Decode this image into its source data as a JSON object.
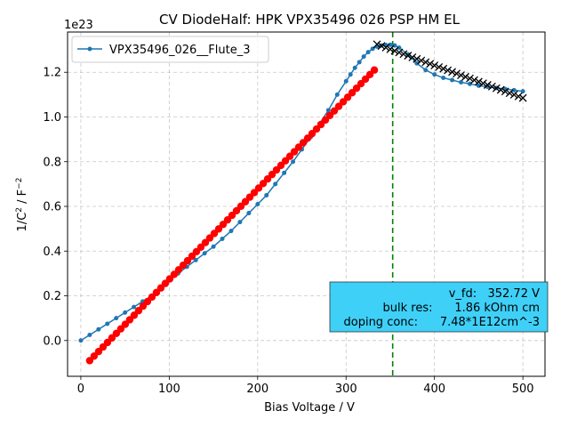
{
  "chart_data": {
    "type": "scatter",
    "title": "CV DiodeHalf: HPK VPX35496 026 PSP HM EL",
    "xlabel": "Bias Voltage / V",
    "ylabel_main": "1/C",
    "ylabel_sup1": "2",
    "ylabel_mid": " / F",
    "ylabel_sup2": "−2",
    "offset_text": "1e23",
    "xlim": [
      -15,
      525
    ],
    "ylim": [
      -0.16,
      1.38
    ],
    "x_ticks": [
      0,
      100,
      200,
      300,
      400,
      500
    ],
    "y_ticks": [
      0.0,
      0.2,
      0.4,
      0.6,
      0.8,
      1.0,
      1.2
    ],
    "y_tick_labels": [
      "0.0",
      "0.2",
      "0.4",
      "0.6",
      "0.8",
      "1.0",
      "1.2"
    ],
    "grid": true,
    "legend_position": "top-left",
    "colors": {
      "measured": "#1f77b4",
      "linear_fit": "#ff0000",
      "plateau_fit": "#000000",
      "vfd_line": "#008000",
      "info_box": "#3fd0f8"
    },
    "series": [
      {
        "name": "VPX35496_026__Flute_3",
        "marker": "dot-line",
        "x": [
          0,
          10,
          20,
          30,
          40,
          50,
          60,
          70,
          80,
          90,
          100,
          110,
          120,
          130,
          140,
          150,
          160,
          170,
          180,
          190,
          200,
          210,
          220,
          230,
          240,
          250,
          260,
          270,
          280,
          290,
          300,
          305,
          310,
          315,
          320,
          325,
          330,
          335,
          340,
          345,
          350,
          355,
          360,
          370,
          380,
          390,
          400,
          410,
          420,
          430,
          440,
          450,
          460,
          470,
          480,
          490,
          500
        ],
        "y": [
          0.0,
          0.025,
          0.05,
          0.075,
          0.1,
          0.125,
          0.15,
          0.175,
          0.2,
          0.24,
          0.27,
          0.3,
          0.33,
          0.36,
          0.39,
          0.42,
          0.455,
          0.49,
          0.53,
          0.57,
          0.61,
          0.65,
          0.7,
          0.75,
          0.8,
          0.855,
          0.91,
          0.97,
          1.03,
          1.1,
          1.16,
          1.19,
          1.22,
          1.245,
          1.27,
          1.29,
          1.305,
          1.315,
          1.32,
          1.322,
          1.323,
          1.32,
          1.31,
          1.28,
          1.24,
          1.21,
          1.19,
          1.175,
          1.165,
          1.155,
          1.148,
          1.14,
          1.135,
          1.13,
          1.125,
          1.12,
          1.115
        ]
      },
      {
        "name": "",
        "marker": "circle",
        "line": [
          [
            10,
            -0.09
          ],
          [
            332,
            1.21
          ]
        ],
        "count": 65
      },
      {
        "name": "",
        "marker": "x",
        "line": [
          [
            335,
            1.325
          ],
          [
            500,
            1.085
          ]
        ],
        "count": 34
      }
    ],
    "vertical_line_x": 352.72,
    "info_box": {
      "lines": [
        "v_fd:   352.72 V",
        "bulk res:      1.86 kOhm cm",
        "doping conc:      7.48*1E12cm^-3"
      ]
    }
  }
}
